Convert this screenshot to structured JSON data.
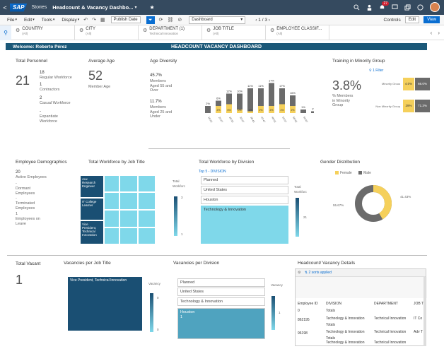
{
  "shell": {
    "back": "<",
    "logo": "SAP",
    "crumb": "Stories",
    "title": "Headcount & Vacancy Dashbo...",
    "title_chevron": "▾",
    "star_icon": "★",
    "bell_count": "27"
  },
  "menu": {
    "items": [
      "File",
      "Edit",
      "Tools",
      "Display"
    ],
    "publish_date": "Publish Date",
    "page_select": "Dashboard",
    "pager": "1 / 3",
    "controls": "Controls",
    "edit": "Edit",
    "view": "View"
  },
  "filters": [
    {
      "label": "COUNTRY",
      "value": "(All)"
    },
    {
      "label": "CITY",
      "value": "(All)"
    },
    {
      "label": "DEPARTMENT (1)",
      "value": "Technical Innovation"
    },
    {
      "label": "JOB TITLE",
      "value": "(All)"
    },
    {
      "label": "EMPLOYEE CLASSIF...",
      "value": "(All)"
    }
  ],
  "welcome": {
    "greeting": "Welcome: Roberto Pérez",
    "heading": "HEADCOUNT VACANCY DASHBOARD"
  },
  "personnel": {
    "title": "Total Personnel",
    "total": "21",
    "rows": [
      {
        "n": "18",
        "label": "Regular Workforce"
      },
      {
        "n": "1",
        "label": "Contractors"
      },
      {
        "n": "2",
        "label": "Casual Workforce"
      },
      {
        "n": "-",
        "label": "Expantiate Workforce"
      }
    ]
  },
  "avg_age": {
    "title": "Average Age",
    "value": "52",
    "label": "Member Age"
  },
  "age_diversity": {
    "title": "Age Diversity",
    "p1": "45.7%",
    "p1_label": "Members Aged 55 and Over",
    "p2": "11.7%",
    "p2_label": "Members Aged 25 and Under"
  },
  "chart_data": {
    "type": "bar",
    "categories": [
      "18-22",
      "23-27",
      "28-32",
      "33-37",
      "38-42",
      "43-47",
      "48-52",
      "53-57",
      "58-62",
      "63-67",
      "UNKN 35-"
    ],
    "series": [
      {
        "name": "dark",
        "values": [
          4,
          7,
          11,
          11,
          14,
          14,
          17,
          14,
          10,
          2,
          1
        ]
      },
      {
        "name": "yellow",
        "values": [
          0,
          4,
          5,
          2,
          1,
          4,
          4,
          5,
          4,
          0,
          0
        ]
      }
    ],
    "labels_top": [
      "2%",
      "6%",
      "12%",
      "10%",
      "11%",
      "11%",
      "17%",
      "17%",
      "16%",
      "1%",
      "1%"
    ],
    "labels_in": [
      "",
      "2%",
      "6%",
      "0%",
      "1%",
      "2%",
      "2%",
      "4%",
      "2%",
      "",
      ""
    ]
  },
  "minority": {
    "title": "Training in Minority Group",
    "filter": "1 Filter",
    "value": "3.8%",
    "value_label": "% Members in Minority Group",
    "rows": [
      {
        "label": "Minority Grous",
        "a": "4.0%",
        "b": "66.0%"
      },
      {
        "label": "Non Minority Group",
        "a": "29%",
        "b": "71.3%"
      }
    ]
  },
  "demographics": {
    "title": "Employee Demographics",
    "total": "20",
    "lines": [
      "Active Employees",
      "-",
      "Dormant Employees",
      "-",
      "Terminated Employees",
      "1",
      "Employees on Leave"
    ]
  },
  "workforce_job": {
    "title": "Total Workforce by Job Title",
    "tiles": [
      "Aux Research Engineer",
      "IT College Learner",
      "Vice President, Technical Innovation"
    ],
    "legend_title": "Total Workforc",
    "legend_max": "3",
    "legend_min": "1"
  },
  "workforce_division": {
    "title": "Total Workforce by Division",
    "top": "Top 5 - DIVISION",
    "items": [
      "Planned",
      "United States",
      "Houston",
      "Technology & Innovation"
    ],
    "legend_title": "Total Workforc",
    "legend_val": "21"
  },
  "gender": {
    "title": "Gender Distribution",
    "female": "Female",
    "male": "Male",
    "male_pct": "55.67%",
    "female_pct": "41.43%",
    "female_color": "#f5d05b",
    "male_color": "#6b6b6b"
  },
  "vacant": {
    "title": "Total Vacant",
    "value": "1"
  },
  "vac_job": {
    "title": "Vacancies per Job Title",
    "tile": "Vice President, Technical Innovation",
    "legend_title": "Vacancy",
    "legend_a": "0",
    "legend_b": "0"
  },
  "vac_division": {
    "title": "Vacancies per Division",
    "items": [
      "Planned",
      "United States",
      "Technology & Innovation"
    ],
    "selected": "Houston",
    "selected_val": "1",
    "legend_title": "Vacancy",
    "legend_val": "1"
  },
  "details": {
    "title": "Headcount/ Vacancy Details",
    "sorts": "2 sorts applied",
    "columns": [
      "Employee ID",
      "DIVISION",
      "DEPARTMENT",
      "JOB T"
    ],
    "rows": [
      [
        "0",
        "Totals",
        "",
        ""
      ],
      [
        "",
        "Technology & Innovation",
        "Technical Innovation",
        "IT Co"
      ],
      [
        "862195",
        "Totals",
        "",
        ""
      ],
      [
        "",
        "Technology & Innovation",
        "Technical Innovation",
        "Adv T"
      ],
      [
        "96198",
        "Totals",
        "",
        ""
      ],
      [
        "",
        "Technology & Innovation",
        "Technical Innovation",
        ""
      ]
    ]
  }
}
